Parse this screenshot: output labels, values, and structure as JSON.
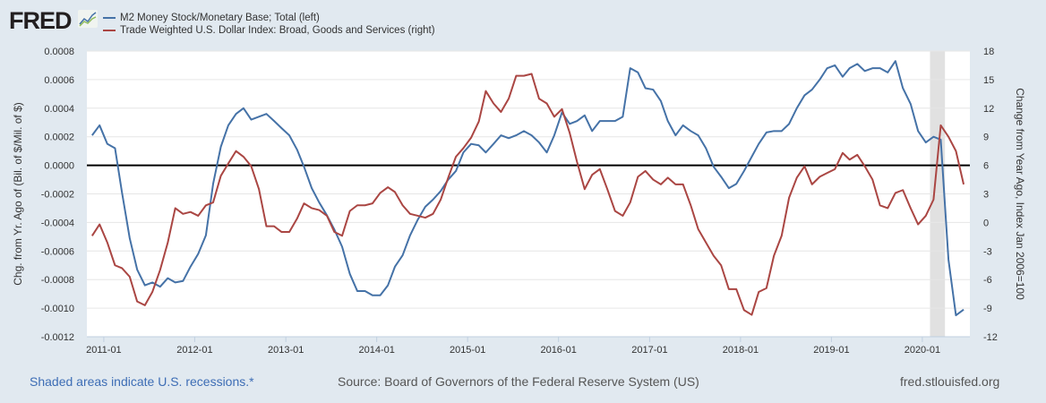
{
  "header": {
    "logo": "FRED",
    "legend": [
      {
        "label": "M2 Money Stock/Monetary Base; Total (left)",
        "color": "#4572a7"
      },
      {
        "label": "Trade Weighted U.S. Dollar Index: Broad, Goods and Services (right)",
        "color": "#aa4643"
      }
    ]
  },
  "footer": {
    "recession_note": "Shaded areas indicate U.S. recessions.*",
    "source": "Source: Board of Governors of the Federal Reserve System (US)",
    "site": "fred.stlouisfed.org"
  },
  "chart_data": {
    "type": "line",
    "ylabel": "Chg. from Yr. Ago of (Bil. of $/Mil. of $)",
    "y2label": "Change from Year Ago, Index Jan 2006=100",
    "ylim": [
      -0.0012,
      0.0008
    ],
    "y2lim": [
      -12,
      18
    ],
    "yticks": [
      "0.0008",
      "0.0006",
      "0.0004",
      "0.0002",
      "0.0000",
      "-0.0002",
      "-0.0004",
      "-0.0006",
      "-0.0008",
      "-0.0010",
      "-0.0012"
    ],
    "y2ticks": [
      "18",
      "15",
      "12",
      "9",
      "6",
      "3",
      "0",
      "-3",
      "-6",
      "-9",
      "-12"
    ],
    "xticks": [
      "2011-01",
      "2012-01",
      "2013-01",
      "2014-01",
      "2015-01",
      "2016-01",
      "2017-01",
      "2018-01",
      "2019-01",
      "2020-01"
    ],
    "xlim": [
      "2010-10-25",
      "2020-07-10"
    ],
    "grid": true,
    "zero_line": true,
    "recessions": [
      [
        "2020-02",
        "2020-04"
      ]
    ],
    "x": [
      "2010-11",
      "2010-12",
      "2011-01",
      "2011-02",
      "2011-03",
      "2011-04",
      "2011-05",
      "2011-06",
      "2011-07",
      "2011-08",
      "2011-09",
      "2011-10",
      "2011-11",
      "2011-12",
      "2012-01",
      "2012-02",
      "2012-03",
      "2012-04",
      "2012-05",
      "2012-06",
      "2012-07",
      "2012-08",
      "2012-09",
      "2012-10",
      "2012-11",
      "2012-12",
      "2013-01",
      "2013-02",
      "2013-03",
      "2013-04",
      "2013-05",
      "2013-06",
      "2013-07",
      "2013-08",
      "2013-09",
      "2013-10",
      "2013-11",
      "2013-12",
      "2014-01",
      "2014-02",
      "2014-03",
      "2014-04",
      "2014-05",
      "2014-06",
      "2014-07",
      "2014-08",
      "2014-09",
      "2014-10",
      "2014-11",
      "2014-12",
      "2015-01",
      "2015-02",
      "2015-03",
      "2015-04",
      "2015-05",
      "2015-06",
      "2015-07",
      "2015-08",
      "2015-09",
      "2015-10",
      "2015-11",
      "2015-12",
      "2016-01",
      "2016-02",
      "2016-03",
      "2016-04",
      "2016-05",
      "2016-06",
      "2016-07",
      "2016-08",
      "2016-09",
      "2016-10",
      "2016-11",
      "2016-12",
      "2017-01",
      "2017-02",
      "2017-03",
      "2017-04",
      "2017-05",
      "2017-06",
      "2017-07",
      "2017-08",
      "2017-09",
      "2017-10",
      "2017-11",
      "2017-12",
      "2018-01",
      "2018-02",
      "2018-03",
      "2018-04",
      "2018-05",
      "2018-06",
      "2018-07",
      "2018-08",
      "2018-09",
      "2018-10",
      "2018-11",
      "2018-12",
      "2019-01",
      "2019-02",
      "2019-03",
      "2019-04",
      "2019-05",
      "2019-06",
      "2019-07",
      "2019-08",
      "2019-09",
      "2019-10",
      "2019-11",
      "2019-12",
      "2020-01",
      "2020-02",
      "2020-03",
      "2020-04",
      "2020-05",
      "2020-06"
    ],
    "series": [
      {
        "name": "M2 Money Stock/Monetary Base; Total (left)",
        "axis": "left",
        "color": "#4572a7",
        "values": [
          0.00021,
          0.00028,
          0.00015,
          0.00012,
          -0.00019,
          -0.00051,
          -0.00073,
          -0.00084,
          -0.00082,
          -0.00085,
          -0.00079,
          -0.00082,
          -0.00081,
          -0.00071,
          -0.00062,
          -0.00049,
          -0.00013,
          0.00013,
          0.00028,
          0.00036,
          0.0004,
          0.00032,
          0.00034,
          0.00036,
          0.00031,
          0.00026,
          0.00021,
          0.00011,
          -1e-05,
          -0.00016,
          -0.00026,
          -0.00035,
          -0.00045,
          -0.00057,
          -0.00076,
          -0.00088,
          -0.00088,
          -0.00091,
          -0.00091,
          -0.00084,
          -0.00071,
          -0.00063,
          -0.00049,
          -0.00038,
          -0.00029,
          -0.00024,
          -0.00018,
          -0.0001,
          -4e-05,
          9e-05,
          0.00015,
          0.00014,
          9e-05,
          0.00015,
          0.00021,
          0.00019,
          0.00021,
          0.00024,
          0.00021,
          0.00016,
          9e-05,
          0.00021,
          0.00037,
          0.00029,
          0.00031,
          0.00035,
          0.00024,
          0.00031,
          0.00031,
          0.00031,
          0.00034,
          0.00068,
          0.00065,
          0.00054,
          0.00053,
          0.00045,
          0.00031,
          0.00021,
          0.00028,
          0.00024,
          0.00021,
          0.00012,
          -1e-05,
          -8e-05,
          -0.00016,
          -0.00013,
          -4e-05,
          6e-05,
          0.00015,
          0.00023,
          0.00024,
          0.00024,
          0.00029,
          0.0004,
          0.00049,
          0.00053,
          0.0006,
          0.00068,
          0.0007,
          0.00062,
          0.00068,
          0.00071,
          0.00066,
          0.00068,
          0.00068,
          0.00065,
          0.00073,
          0.00054,
          0.00043,
          0.00024,
          0.00016,
          0.0002,
          0.00018,
          -0.00066,
          -0.00105,
          -0.00101
        ]
      },
      {
        "name": "Trade Weighted U.S. Dollar Index: Broad, Goods and Services (right)",
        "axis": "right",
        "color": "#aa4643",
        "values": [
          -1.4,
          -0.2,
          -2.1,
          -4.5,
          -4.8,
          -5.7,
          -8.3,
          -8.7,
          -7.3,
          -5.0,
          -2.1,
          1.5,
          0.9,
          1.1,
          0.7,
          1.8,
          2.1,
          4.9,
          6.2,
          7.5,
          6.9,
          5.9,
          3.5,
          -0.4,
          -0.4,
          -1.0,
          -1.0,
          0.4,
          2.0,
          1.5,
          1.3,
          0.7,
          -1.0,
          -1.4,
          1.2,
          1.8,
          1.8,
          2.0,
          3.1,
          3.7,
          3.2,
          1.8,
          0.9,
          0.7,
          0.5,
          0.9,
          2.4,
          4.7,
          6.9,
          7.8,
          8.9,
          10.6,
          13.8,
          12.5,
          11.6,
          13.0,
          15.4,
          15.4,
          15.6,
          13.0,
          12.5,
          11.1,
          11.9,
          9.4,
          6.4,
          3.5,
          5.0,
          5.6,
          3.5,
          1.2,
          0.7,
          2.1,
          4.8,
          5.4,
          4.5,
          4.0,
          4.7,
          4.0,
          4.0,
          1.8,
          -0.7,
          -2.1,
          -3.5,
          -4.5,
          -7.0,
          -7.0,
          -9.2,
          -9.7,
          -7.3,
          -6.9,
          -3.5,
          -1.4,
          2.6,
          4.7,
          5.9,
          4.0,
          4.8,
          5.2,
          5.6,
          7.3,
          6.6,
          7.1,
          5.9,
          4.5,
          1.8,
          1.5,
          3.1,
          3.4,
          1.5,
          -0.2,
          0.7,
          2.4,
          10.2,
          9.0,
          7.5,
          4.0
        ]
      }
    ]
  }
}
